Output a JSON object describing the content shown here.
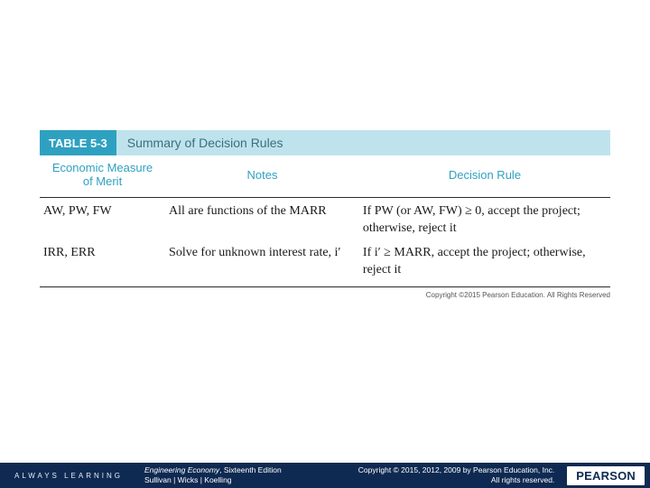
{
  "colors": {
    "title_tab_bg": "#2fa1c0",
    "title_text_bg": "#bfe3ed",
    "title_text_color": "#3a6f80",
    "header_text": "#2fa1c0",
    "body_text": "#1a1a1a",
    "rule_color": "#2a2a2a",
    "footer_bg": "#0f2a52",
    "footer_text": "#ffffff"
  },
  "table": {
    "label": "TABLE 5-3",
    "title": "Summary of Decision Rules",
    "columns": [
      "Economic Measure of Merit",
      "Notes",
      "Decision Rule"
    ],
    "rows": [
      {
        "measure": "AW, PW, FW",
        "notes": "All are functions of the MARR",
        "rule": "If PW (or AW, FW) ≥ 0, accept the project; otherwise, reject it"
      },
      {
        "measure": "IRR, ERR",
        "notes": "Solve for unknown interest rate, i′",
        "rule": "If i′ ≥ MARR, accept the project; otherwise, reject it"
      }
    ],
    "inner_copyright": "Copyright ©2015 Pearson Education. All Rights Reserved"
  },
  "footer": {
    "always": "ALWAYS LEARNING",
    "book_title": "Engineering Economy",
    "edition": ", Sixteenth Edition",
    "authors": "Sullivan | Wicks | Koelling",
    "copyright_line1": "Copyright © 2015, 2012, 2009 by Pearson Education, Inc.",
    "copyright_line2": "All rights reserved.",
    "logo": "PEARSON"
  }
}
